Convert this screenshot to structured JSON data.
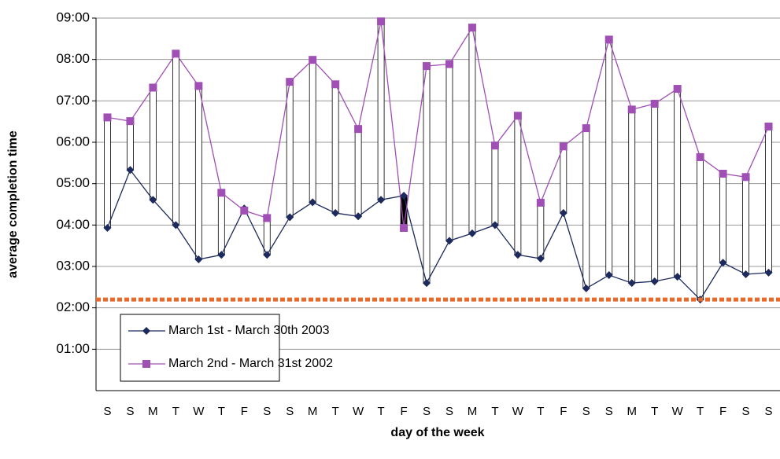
{
  "chart_data": {
    "type": "line",
    "y_label": "average completion time",
    "x_label": "day of the week",
    "categories": [
      "S",
      "S",
      "M",
      "T",
      "W",
      "T",
      "F",
      "S",
      "S",
      "M",
      "T",
      "W",
      "T",
      "F",
      "S",
      "S",
      "M",
      "T",
      "W",
      "T",
      "F",
      "S",
      "S",
      "M",
      "T",
      "W",
      "T",
      "F",
      "S",
      "S"
    ],
    "series": [
      {
        "name": "March 1st - March 30th 2003",
        "color": "#1c2a5e",
        "marker": "diamond",
        "values": [
          3.93,
          5.33,
          4.61,
          4.0,
          3.17,
          3.28,
          4.4,
          3.28,
          4.19,
          4.55,
          4.29,
          4.21,
          4.61,
          4.71,
          2.6,
          3.62,
          3.8,
          4.0,
          3.28,
          3.19,
          4.29,
          2.47,
          2.79,
          2.6,
          2.64,
          2.75,
          2.2,
          3.09,
          2.81,
          2.85
        ]
      },
      {
        "name": "March 2nd - March 31st 2002",
        "color": "#a050b4",
        "marker": "square",
        "values": [
          6.6,
          6.51,
          7.32,
          8.14,
          7.36,
          4.78,
          4.35,
          4.17,
          7.46,
          7.99,
          7.4,
          6.32,
          8.92,
          3.93,
          7.84,
          7.89,
          8.77,
          5.92,
          6.64,
          4.54,
          5.9,
          6.34,
          8.48,
          6.79,
          6.93,
          7.29,
          5.64,
          5.24,
          5.16,
          6.38
        ]
      }
    ],
    "reference_line": {
      "value": 2.2,
      "color": "#e8692a"
    },
    "ylim": [
      0,
      9
    ],
    "yticks": [
      {
        "value": 1,
        "label": "01:00"
      },
      {
        "value": 2,
        "label": "02:00"
      },
      {
        "value": 3,
        "label": "03:00"
      },
      {
        "value": 4,
        "label": "04:00"
      },
      {
        "value": 5,
        "label": "05:00"
      },
      {
        "value": 6,
        "label": "06:00"
      },
      {
        "value": 7,
        "label": "07:00"
      },
      {
        "value": 8,
        "label": "08:00"
      },
      {
        "value": 9,
        "label": "09:00"
      }
    ],
    "grid": true
  }
}
